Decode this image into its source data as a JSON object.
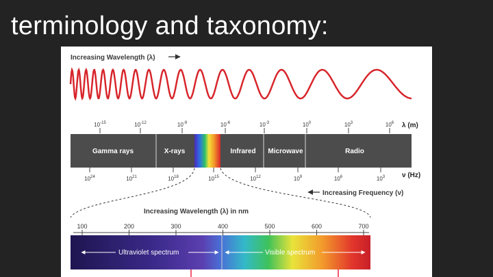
{
  "slide": {
    "title": "terminology and taxonomy:"
  },
  "diagram": {
    "wavelength_header": "Increasing Wavelength (λ)",
    "wavelength_axis_label": "λ (m)",
    "wavelength_ticks": [
      {
        "base": "10",
        "exp": "-15"
      },
      {
        "base": "10",
        "exp": "-12"
      },
      {
        "base": "10",
        "exp": "-9"
      },
      {
        "base": "10",
        "exp": "-6"
      },
      {
        "base": "10",
        "exp": "-3"
      },
      {
        "base": "10",
        "exp": "0"
      },
      {
        "base": "10",
        "exp": "3"
      },
      {
        "base": "10",
        "exp": "6"
      }
    ],
    "bands": [
      "Gamma rays",
      "X-rays",
      "Infrared",
      "Microwave",
      "Radio"
    ],
    "frequency_axis_label": "ν (Hz)",
    "frequency_ticks": [
      {
        "base": "10",
        "exp": "24"
      },
      {
        "base": "10",
        "exp": "21"
      },
      {
        "base": "10",
        "exp": "18"
      },
      {
        "base": "10",
        "exp": "15"
      },
      {
        "base": "10",
        "exp": "12"
      },
      {
        "base": "10",
        "exp": "9"
      },
      {
        "base": "10",
        "exp": "6"
      },
      {
        "base": "10",
        "exp": "3"
      }
    ],
    "frequency_caption": "Increasing Frequency (ν)",
    "visible_header": "Increasing Wavelength (λ) in nm",
    "nm_ticks": [
      "100",
      "200",
      "300",
      "400",
      "500",
      "600",
      "700"
    ],
    "uv_label": "Ultraviolet spectrum",
    "visible_label": "Visible spectrum",
    "colors": {
      "wave": "#d7252b",
      "band_bar": "#4c4c4c",
      "uv_dark": "#1e1550",
      "uv_mid": "#5b3fb0"
    }
  }
}
